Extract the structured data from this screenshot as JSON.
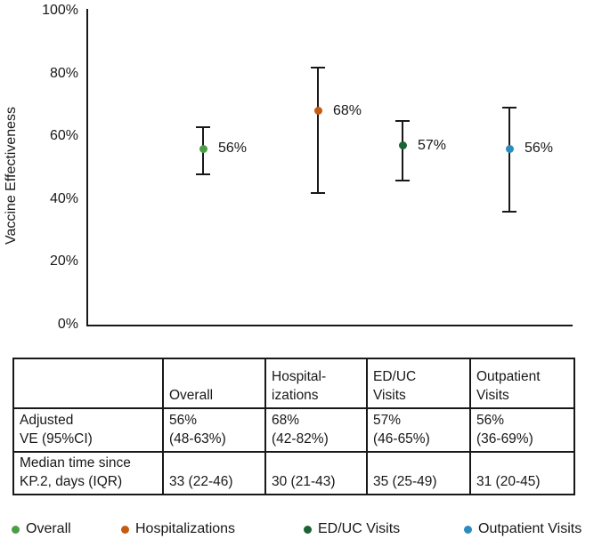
{
  "chart_data": {
    "type": "scatter",
    "title": "",
    "ylabel": "Vaccine Effectiveness",
    "xlabel": "",
    "ylim": [
      0,
      100
    ],
    "yticks": [
      0,
      20,
      40,
      60,
      80,
      100
    ],
    "ytick_labels": [
      "0%",
      "20%",
      "40%",
      "60%",
      "80%",
      "100%"
    ],
    "grid": false,
    "legend_position": "bottom",
    "series": [
      {
        "name": "Overall",
        "value": 56,
        "ci_low": 48,
        "ci_high": 63,
        "point_label": "56%",
        "color": "#4A9E44"
      },
      {
        "name": "Hospitalizations",
        "value": 68,
        "ci_low": 42,
        "ci_high": 82,
        "point_label": "68%",
        "color": "#C55A11"
      },
      {
        "name": "ED/UC Visits",
        "value": 57,
        "ci_low": 46,
        "ci_high": 65,
        "point_label": "57%",
        "color": "#1A6333"
      },
      {
        "name": "Outpatient Visits",
        "value": 56,
        "ci_low": 36,
        "ci_high": 69,
        "point_label": "56%",
        "color": "#2B8CBE"
      }
    ]
  },
  "table": {
    "col_headers": [
      "",
      "Overall",
      "Hospital-\nizations",
      "ED/UC\nVisits",
      "Outpatient\nVisits"
    ],
    "rows": [
      {
        "label": "Adjusted\nVE (95%CI)",
        "values": [
          "56%\n(48-63%)",
          "68%\n(42-82%)",
          "57%\n(46-65%)",
          "56%\n(36-69%)"
        ]
      },
      {
        "label": "Median time since\nKP.2, days (IQR)",
        "values": [
          "33 (22-46)",
          "30 (21-43)",
          "35 (25-49)",
          "31 (20-45)"
        ]
      }
    ]
  },
  "legend": {
    "items": [
      {
        "label": "Overall",
        "color": "#4A9E44"
      },
      {
        "label": "Hospitalizations",
        "color": "#C55A11"
      },
      {
        "label": "ED/UC Visits",
        "color": "#1A6333"
      },
      {
        "label": "Outpatient Visits",
        "color": "#2B8CBE"
      }
    ]
  }
}
